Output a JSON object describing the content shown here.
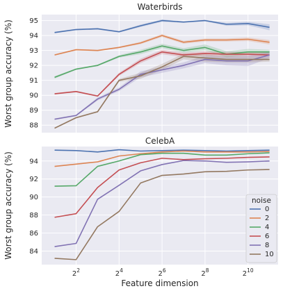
{
  "chart_data": [
    {
      "type": "line",
      "title": "Waterbirds",
      "xlabel": "",
      "ylabel": "Worst group accuracy (%)",
      "log2_x": true,
      "x": [
        1,
        2,
        3,
        4,
        5,
        6,
        7,
        8,
        9,
        10,
        11
      ],
      "xticks": [
        {
          "at": 2,
          "base": "2",
          "exp": "2"
        },
        {
          "at": 4,
          "base": "2",
          "exp": "4"
        },
        {
          "at": 6,
          "base": "2",
          "exp": "6"
        },
        {
          "at": 8,
          "base": "2",
          "exp": "8"
        },
        {
          "at": 10,
          "base": "2",
          "exp": "10"
        }
      ],
      "ylim": [
        87.5,
        95.4
      ],
      "yticks": [
        88,
        89,
        90,
        91,
        92,
        93,
        94,
        95
      ],
      "series": [
        {
          "name": "0",
          "color": "#4c72b0",
          "values": [
            94.2,
            94.4,
            94.45,
            94.25,
            94.65,
            95.0,
            94.9,
            95.0,
            94.75,
            94.8,
            94.55
          ],
          "band": [
            0.05,
            0.05,
            0.05,
            0.05,
            0.08,
            0.08,
            0.05,
            0.05,
            0.1,
            0.12,
            0.2
          ]
        },
        {
          "name": "2",
          "color": "#dd8452",
          "values": [
            92.7,
            93.05,
            93.0,
            93.2,
            93.5,
            94.0,
            93.55,
            93.7,
            93.7,
            93.75,
            93.55
          ],
          "band": [
            0.05,
            0.05,
            0.05,
            0.05,
            0.08,
            0.1,
            0.1,
            0.1,
            0.1,
            0.12,
            0.15
          ]
        },
        {
          "name": "4",
          "color": "#55a868",
          "values": [
            91.2,
            91.75,
            92.0,
            92.6,
            92.9,
            93.3,
            93.0,
            93.2,
            92.75,
            92.9,
            92.9
          ],
          "band": [
            0.08,
            0.05,
            0.05,
            0.08,
            0.15,
            0.15,
            0.15,
            0.2,
            0.2,
            0.2,
            0.15
          ]
        },
        {
          "name": "6",
          "color": "#c44e52",
          "values": [
            90.1,
            90.25,
            89.95,
            91.4,
            92.3,
            92.9,
            92.7,
            92.8,
            92.75,
            92.75,
            92.7
          ],
          "band": [
            0.05,
            0.05,
            0.05,
            0.1,
            0.15,
            0.15,
            0.15,
            0.15,
            0.15,
            0.15,
            0.15
          ]
        },
        {
          "name": "8",
          "color": "#8172b3",
          "values": [
            88.4,
            88.65,
            89.75,
            90.4,
            91.4,
            91.7,
            92.0,
            92.4,
            92.3,
            92.3,
            92.7
          ],
          "band": [
            0.05,
            0.05,
            0.1,
            0.12,
            0.2,
            0.2,
            0.2,
            0.25,
            0.3,
            0.35,
            0.2
          ]
        },
        {
          "name": "10",
          "color": "#937860",
          "values": [
            87.8,
            88.5,
            88.9,
            91.0,
            91.3,
            91.9,
            92.6,
            92.5,
            92.4,
            92.4,
            92.4
          ],
          "band": [
            0.05,
            0.05,
            0.05,
            0.1,
            0.2,
            0.2,
            0.2,
            0.25,
            0.2,
            0.2,
            0.15
          ]
        }
      ]
    },
    {
      "type": "line",
      "title": "CelebA",
      "xlabel": "Feature dimension",
      "ylabel": "Worst group accuracy (%)",
      "log2_x": true,
      "x": [
        1,
        2,
        3,
        4,
        5,
        6,
        7,
        8,
        9,
        10,
        11
      ],
      "xticks": [
        {
          "at": 2,
          "base": "2",
          "exp": "2"
        },
        {
          "at": 4,
          "base": "2",
          "exp": "4"
        },
        {
          "at": 6,
          "base": "2",
          "exp": "6"
        },
        {
          "at": 8,
          "base": "2",
          "exp": "8"
        },
        {
          "at": 10,
          "base": "2",
          "exp": "10"
        }
      ],
      "ylim": [
        82.5,
        95.6
      ],
      "yticks": [
        84,
        86,
        88,
        90,
        92,
        94
      ],
      "legend": {
        "title": "noise",
        "placement": "lower-right"
      },
      "series": [
        {
          "name": "0",
          "color": "#4c72b0",
          "values": [
            95.2,
            95.15,
            95.0,
            95.25,
            95.1,
            95.15,
            95.2,
            95.15,
            95.1,
            95.15,
            95.2
          ]
        },
        {
          "name": "2",
          "color": "#dd8452",
          "values": [
            93.4,
            93.65,
            93.9,
            94.55,
            94.8,
            95.0,
            95.1,
            95.0,
            95.0,
            95.0,
            95.05
          ]
        },
        {
          "name": "4",
          "color": "#55a868",
          "values": [
            91.2,
            91.25,
            93.4,
            94.0,
            94.7,
            94.85,
            94.85,
            94.65,
            94.65,
            94.8,
            94.9
          ]
        },
        {
          "name": "6",
          "color": "#c44e52",
          "values": [
            87.75,
            88.15,
            91.05,
            93.0,
            93.8,
            94.3,
            94.15,
            94.25,
            94.3,
            94.4,
            94.45
          ]
        },
        {
          "name": "8",
          "color": "#8172b3",
          "values": [
            84.5,
            84.85,
            89.75,
            91.3,
            92.9,
            93.6,
            94.05,
            94.0,
            93.85,
            93.9,
            94.0
          ]
        },
        {
          "name": "10",
          "color": "#937860",
          "values": [
            83.2,
            83.05,
            86.7,
            88.4,
            91.55,
            92.4,
            92.55,
            92.8,
            92.85,
            93.0,
            93.05
          ]
        }
      ]
    }
  ]
}
